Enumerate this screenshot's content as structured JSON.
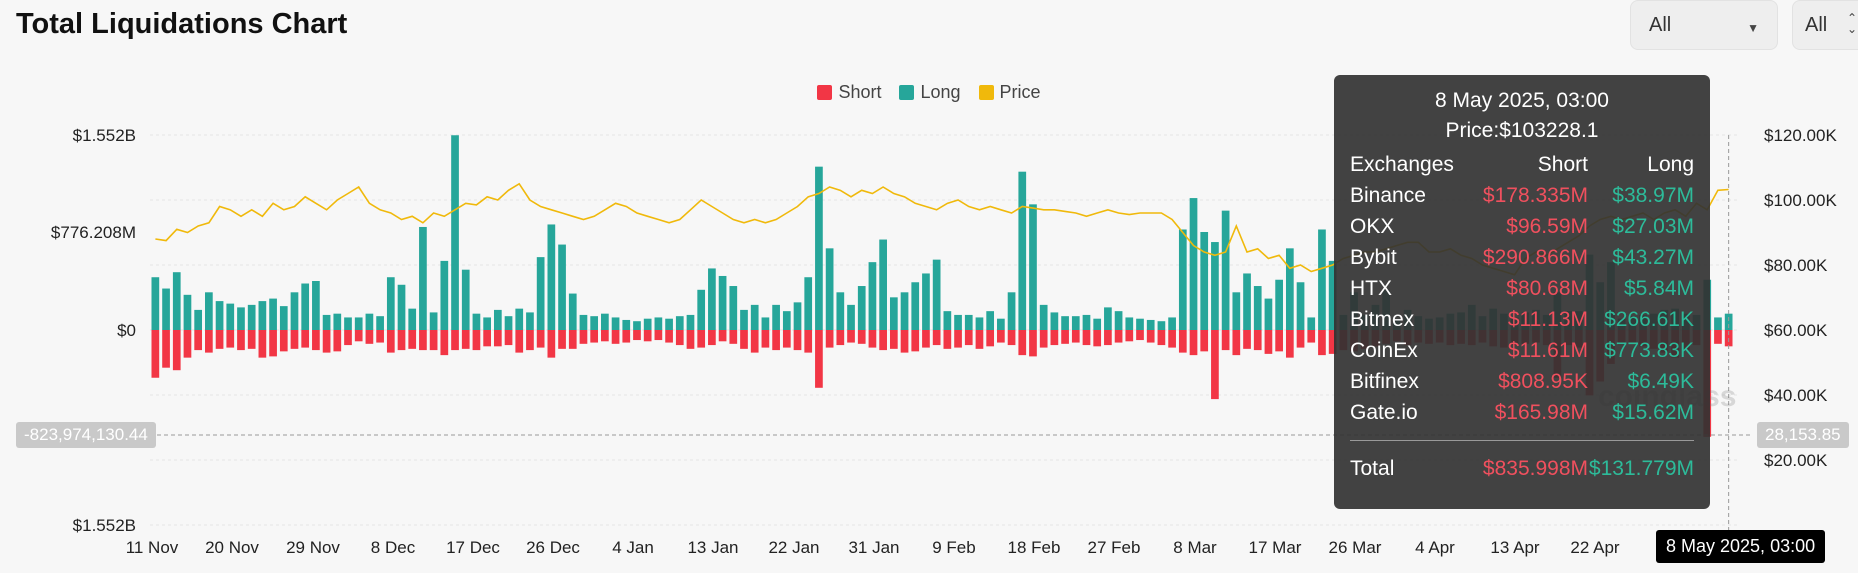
{
  "header": {
    "title": "Total Liquidations Chart"
  },
  "filters": {
    "select1": "All",
    "select2": "All"
  },
  "legend": [
    {
      "label": "Short",
      "color": "#f23645"
    },
    {
      "label": "Long",
      "color": "#26a69a"
    },
    {
      "label": "Price",
      "color": "#f0b90b"
    }
  ],
  "crosshair": {
    "left_value": "-823,974,130.44",
    "right_value": "28,153.85",
    "date": "8 May 2025, 03:00"
  },
  "watermark": "coinglass",
  "tooltip": {
    "date": "8 May 2025, 03:00",
    "price": "Price:$103228.1",
    "headers": [
      "Exchanges",
      "Short",
      "Long"
    ],
    "rows": [
      [
        "Binance",
        "$178.335M",
        "$38.97M"
      ],
      [
        "OKX",
        "$96.59M",
        "$27.03M"
      ],
      [
        "Bybit",
        "$290.866M",
        "$43.27M"
      ],
      [
        "HTX",
        "$80.68M",
        "$5.84M"
      ],
      [
        "Bitmex",
        "$11.13M",
        "$266.61K"
      ],
      [
        "CoinEx",
        "$11.61M",
        "$773.83K"
      ],
      [
        "Bitfinex",
        "$808.95K",
        "$6.49K"
      ],
      [
        "Gate.io",
        "$165.98M",
        "$15.62M"
      ]
    ],
    "total": [
      "Total",
      "$835.998M",
      "$131.779M"
    ]
  },
  "chart_data": {
    "type": "bar",
    "title": "Total Liquidations Chart",
    "x_tick_labels": [
      "11 Nov",
      "20 Nov",
      "29 Nov",
      "8 Dec",
      "17 Dec",
      "26 Dec",
      "4 Jan",
      "13 Jan",
      "22 Jan",
      "31 Jan",
      "9 Feb",
      "18 Feb",
      "27 Feb",
      "8 Mar",
      "17 Mar",
      "26 Mar",
      "4 Apr",
      "13 Apr",
      "22 Apr",
      "8 May 2025, 03:00"
    ],
    "left_axis_labels": [
      "$1.552B",
      "$776.208M",
      "$0",
      "$1.552B"
    ],
    "left_axis_values": [
      1552000000,
      776208000,
      0,
      -1552000000
    ],
    "right_axis_labels": [
      "$120.00K",
      "$100.00K",
      "$80.00K",
      "$60.00K",
      "$40.00K",
      "$20.00K"
    ],
    "right_axis_values": [
      120000,
      100000,
      80000,
      60000,
      40000,
      20000
    ],
    "units": {
      "liquidations": "USD",
      "price": "USD"
    },
    "series": [
      {
        "name": "Long",
        "color": "#26a69a",
        "values": [
          420,
          330,
          460,
          280,
          160,
          300,
          230,
          210,
          180,
          200,
          230,
          250,
          190,
          300,
          370,
          390,
          120,
          130,
          100,
          100,
          130,
          110,
          420,
          360,
          170,
          820,
          140,
          550,
          1550,
          480,
          130,
          100,
          160,
          110,
          170,
          140,
          580,
          840,
          680,
          290,
          120,
          110,
          130,
          100,
          80,
          70,
          90,
          100,
          90,
          110,
          120,
          320,
          490,
          430,
          350,
          160,
          200,
          100,
          200,
          150,
          220,
          420,
          1300,
          650,
          300,
          200,
          350,
          540,
          720,
          260,
          300,
          380,
          450,
          560,
          150,
          120,
          120,
          100,
          150,
          90,
          300,
          1260,
          1000,
          200,
          140,
          110,
          110,
          120,
          90,
          180,
          150,
          100,
          90,
          80,
          70,
          100,
          800,
          1050,
          780,
          700,
          950,
          300,
          450,
          350,
          250,
          400,
          650,
          380,
          100,
          800,
          550,
          120,
          300,
          120,
          200,
          320,
          80,
          160,
          110,
          90,
          100,
          130,
          140,
          200,
          110,
          170,
          130,
          100,
          140,
          160,
          120,
          300,
          150,
          150,
          600,
          380,
          540,
          90,
          110,
          120,
          130,
          160,
          170,
          130,
          120,
          400,
          100,
          130
        ]
      },
      {
        "name": "Short",
        "color": "#f23645",
        "values": [
          -380,
          -300,
          -320,
          -220,
          -160,
          -180,
          -150,
          -140,
          -160,
          -150,
          -220,
          -210,
          -170,
          -150,
          -140,
          -160,
          -180,
          -170,
          -120,
          -90,
          -110,
          -100,
          -180,
          -160,
          -150,
          -160,
          -160,
          -200,
          -160,
          -150,
          -160,
          -130,
          -130,
          -120,
          -180,
          -160,
          -140,
          -220,
          -150,
          -150,
          -110,
          -100,
          -90,
          -110,
          -100,
          -80,
          -90,
          -80,
          -100,
          -120,
          -150,
          -140,
          -120,
          -90,
          -110,
          -150,
          -180,
          -140,
          -160,
          -140,
          -160,
          -180,
          -460,
          -140,
          -120,
          -100,
          -110,
          -140,
          -160,
          -150,
          -180,
          -170,
          -140,
          -120,
          -150,
          -140,
          -120,
          -150,
          -130,
          -100,
          -120,
          -200,
          -210,
          -140,
          -120,
          -110,
          -100,
          -120,
          -130,
          -120,
          -100,
          -90,
          -80,
          -100,
          -120,
          -140,
          -180,
          -200,
          -170,
          -550,
          -160,
          -200,
          -150,
          -160,
          -190,
          -170,
          -220,
          -140,
          -100,
          -200,
          -190,
          -160,
          -170,
          -150,
          -130,
          -110,
          -90,
          -120,
          -100,
          -110,
          -100,
          -120,
          -110,
          -120,
          -100,
          -130,
          -140,
          -120,
          -110,
          -100,
          -120,
          -380,
          -120,
          -140,
          -520,
          -410,
          -270,
          -120,
          -110,
          -130,
          -150,
          -180,
          -220,
          -160,
          -120,
          -850,
          -110,
          -130
        ]
      },
      {
        "name": "Price",
        "color": "#f0b90b",
        "values": [
          88000,
          87500,
          91000,
          90000,
          92000,
          93000,
          98000,
          97000,
          95000,
          97000,
          95000,
          99000,
          97000,
          98000,
          101000,
          99000,
          97000,
          100000,
          102000,
          104000,
          99000,
          97000,
          96000,
          94000,
          95000,
          93000,
          96000,
          95000,
          97000,
          99000,
          98500,
          101000,
          100000,
          103000,
          105000,
          100000,
          98000,
          97000,
          96000,
          95000,
          94000,
          95000,
          97000,
          99000,
          98000,
          96000,
          95000,
          94000,
          93000,
          94000,
          97000,
          100000,
          98000,
          96000,
          94000,
          93000,
          94000,
          93000,
          94000,
          96000,
          98000,
          101000,
          102000,
          104000,
          103000,
          101000,
          103000,
          102000,
          104000,
          102000,
          101000,
          99000,
          98000,
          97000,
          99000,
          100000,
          98000,
          97000,
          98000,
          97000,
          96000,
          98000,
          97500,
          97000,
          97000,
          96500,
          96000,
          95000,
          96000,
          97000,
          96000,
          95500,
          96000,
          96000,
          96000,
          94000,
          90000,
          86000,
          84000,
          83000,
          84000,
          92000,
          84000,
          85000,
          82000,
          83000,
          79000,
          80000,
          78000,
          79000,
          80000,
          82000,
          83000,
          84000,
          84000,
          85000,
          86000,
          87000,
          87000,
          84000,
          84000,
          85000,
          83000,
          82000,
          80000,
          79000,
          78000,
          77000,
          82000,
          84000,
          83000,
          85000,
          87000,
          89000,
          92000,
          94000,
          95000,
          94000,
          95000,
          96000,
          94000,
          96000,
          97000,
          95000,
          99000,
          97000,
          103000,
          103228
        ]
      }
    ],
    "grid": true,
    "legend_position": "top-center"
  }
}
